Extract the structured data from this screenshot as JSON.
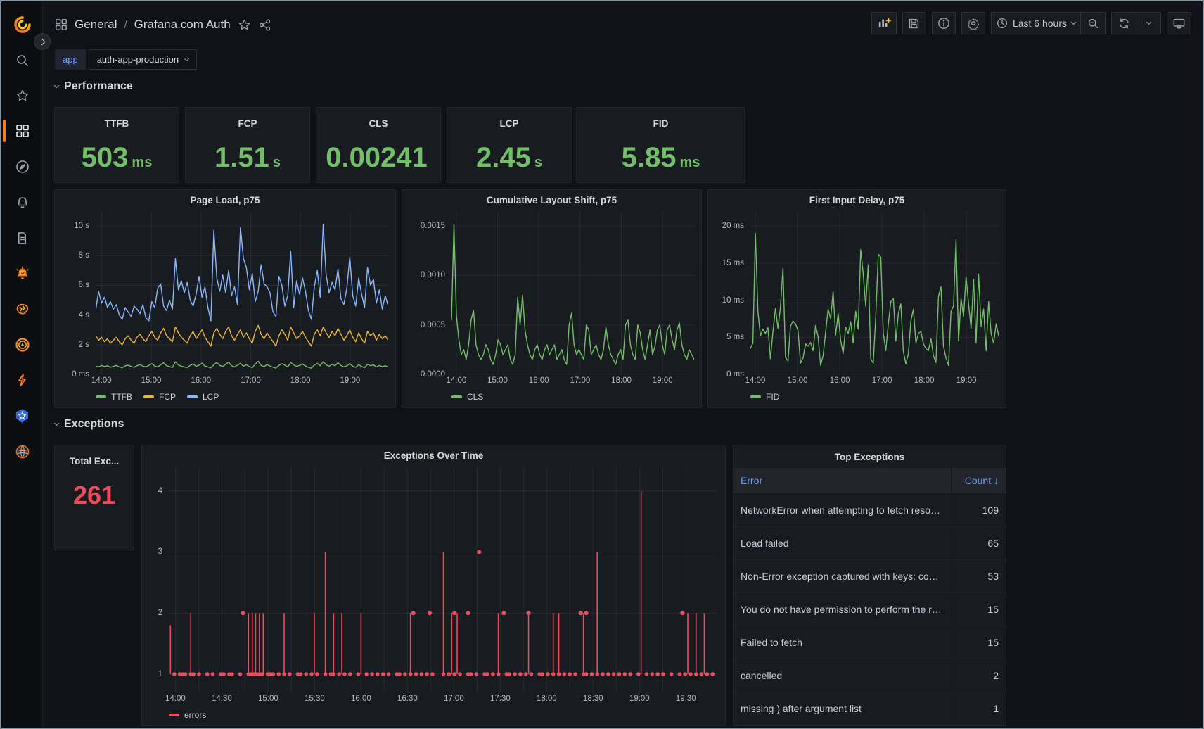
{
  "colors": {
    "green": "#73BF69",
    "yellow": "#EAB839",
    "blue": "#8AB8FF",
    "red": "#F2495C",
    "link": "#6E9FFF",
    "accent": "#FF780A"
  },
  "header": {
    "breadcrumb": {
      "section": "General",
      "separator": "/",
      "title": "Grafana.com Auth"
    },
    "toolbar": {
      "time_range": "Last 6 hours"
    }
  },
  "variables": {
    "label": "app",
    "value": "auth-app-production"
  },
  "sections": {
    "performance": "Performance",
    "exceptions": "Exceptions"
  },
  "stats": [
    {
      "title": "TTFB",
      "value": "503",
      "unit": "ms"
    },
    {
      "title": "FCP",
      "value": "1.51",
      "unit": "s"
    },
    {
      "title": "CLS",
      "value": "0.00241",
      "unit": ""
    },
    {
      "title": "LCP",
      "value": "2.45",
      "unit": "s"
    },
    {
      "title": "FID",
      "value": "5.85",
      "unit": "ms"
    }
  ],
  "total_exceptions": {
    "title": "Total Exc...",
    "value": "261"
  },
  "table": {
    "title": "Top Exceptions",
    "col_error": "Error",
    "col_count": "Count",
    "sort_icon": "↓",
    "rows": [
      {
        "error": "NetworkError when attempting to fetch resource.",
        "count": "109"
      },
      {
        "error": "Load failed",
        "count": "65"
      },
      {
        "error": "Non-Error exception captured with keys: code,mess...",
        "count": "53"
      },
      {
        "error": "You do not have permission to perform the request...",
        "count": "15"
      },
      {
        "error": "Failed to fetch",
        "count": "15"
      },
      {
        "error": "cancelled",
        "count": "2"
      },
      {
        "error": "missing ) after argument list",
        "count": "1"
      }
    ]
  },
  "chart_data": [
    {
      "id": "page_load",
      "type": "line",
      "title": "Page Load, p75",
      "ylim": [
        0,
        11
      ],
      "yaxis_width": 50,
      "yticks": [
        {
          "v": 0,
          "label": "0 ms"
        },
        {
          "v": 2,
          "label": "2 s"
        },
        {
          "v": 4,
          "label": "4 s"
        },
        {
          "v": 6,
          "label": "6 s"
        },
        {
          "v": 8,
          "label": "8 s"
        },
        {
          "v": 10,
          "label": "10 s"
        }
      ],
      "xticks": [
        {
          "f": 0.02,
          "label": "14:00"
        },
        {
          "f": 0.19,
          "label": "15:00"
        },
        {
          "f": 0.36,
          "label": "16:00"
        },
        {
          "f": 0.53,
          "label": "17:00"
        },
        {
          "f": 0.7,
          "label": "18:00"
        },
        {
          "f": 0.87,
          "label": "19:00"
        }
      ],
      "series": [
        {
          "name": "TTFB",
          "color": "#73BF69",
          "values": [
            0.55,
            0.5,
            0.6,
            0.52,
            0.58,
            0.48,
            0.54,
            0.6,
            0.5,
            0.45,
            0.57,
            0.62,
            0.53,
            0.48,
            0.58,
            0.66,
            0.55,
            0.5,
            0.6,
            0.72,
            0.56,
            0.5,
            0.64,
            0.78,
            0.58,
            0.52,
            0.47,
            0.85,
            0.63,
            0.55,
            0.5,
            0.46,
            0.6,
            0.7,
            0.54,
            0.62,
            0.75,
            0.56,
            0.5,
            0.44,
            0.65,
            0.8,
            0.6,
            0.53,
            0.68,
            0.82,
            0.58,
            0.5,
            0.62,
            0.74,
            0.55,
            0.65,
            0.52,
            0.46,
            0.68,
            0.88,
            0.6,
            0.52,
            0.66,
            0.56,
            0.48,
            0.42,
            0.6,
            0.72,
            0.62,
            0.5,
            0.8,
            0.64,
            0.54,
            0.6,
            0.7,
            0.56,
            0.48,
            0.42,
            0.62,
            0.74,
            0.58,
            0.85,
            0.64,
            0.55,
            0.68,
            0.58,
            0.78,
            0.6,
            0.5,
            0.58,
            0.72,
            0.55,
            0.47,
            0.65,
            0.53,
            0.45,
            0.68,
            0.58,
            0.64,
            0.5,
            0.6,
            0.52,
            0.58,
            0.5
          ]
        },
        {
          "name": "FCP",
          "color": "#EAB839",
          "values": [
            2.6,
            2.3,
            2.5,
            2.2,
            2.4,
            2.1,
            2.3,
            2.5,
            2.2,
            2.0,
            2.4,
            2.6,
            2.3,
            2.1,
            2.5,
            2.7,
            2.4,
            2.2,
            2.6,
            2.9,
            2.5,
            2.3,
            2.8,
            3.1,
            2.6,
            2.4,
            2.2,
            3.2,
            2.8,
            2.5,
            2.3,
            2.1,
            2.6,
            2.9,
            2.4,
            2.7,
            3.0,
            2.5,
            2.2,
            1.9,
            2.8,
            3.1,
            2.7,
            2.4,
            2.9,
            3.2,
            2.6,
            2.3,
            2.7,
            3.0,
            2.5,
            2.8,
            2.4,
            2.1,
            2.9,
            3.3,
            2.7,
            2.4,
            2.8,
            2.5,
            2.2,
            1.9,
            2.6,
            3.0,
            2.7,
            2.3,
            3.2,
            2.8,
            2.4,
            2.6,
            2.9,
            2.5,
            2.2,
            1.9,
            2.7,
            3.0,
            2.6,
            3.2,
            2.8,
            2.5,
            2.9,
            2.6,
            3.1,
            2.7,
            2.3,
            2.6,
            3.0,
            2.5,
            2.2,
            2.8,
            2.4,
            2.1,
            2.9,
            2.6,
            2.8,
            2.3,
            2.7,
            2.4,
            2.6,
            2.3
          ]
        },
        {
          "name": "LCP",
          "color": "#8AB8FF",
          "values": [
            4.3,
            5.6,
            4.8,
            5.2,
            4.5,
            4.9,
            4.4,
            4.7,
            4.0,
            3.7,
            4.5,
            4.2,
            3.9,
            4.6,
            4.4,
            4.1,
            4.7,
            3.8,
            3.6,
            4.9,
            4.5,
            5.8,
            6.1,
            4.6,
            4.3,
            5.0,
            4.4,
            7.8,
            5.7,
            6.3,
            5.5,
            6.2,
            5.0,
            4.6,
            5.4,
            6.6,
            5.2,
            5.9,
            4.5,
            3.6,
            9.7,
            6.5,
            5.6,
            6.7,
            5.5,
            7.0,
            5.3,
            5.9,
            4.7,
            9.9,
            7.8,
            7.2,
            5.7,
            6.8,
            4.9,
            5.6,
            7.4,
            6.1,
            5.9,
            5.5,
            4.2,
            3.9,
            6.6,
            6.0,
            4.6,
            5.3,
            8.3,
            4.5,
            6.3,
            5.4,
            6.5,
            5.6,
            4.3,
            3.7,
            5.9,
            7.0,
            5.2,
            10.1,
            6.7,
            5.5,
            6.2,
            5.7,
            7.1,
            5.1,
            4.7,
            5.8,
            7.9,
            5.3,
            4.6,
            6.5,
            5.4,
            4.5,
            7.2,
            6.0,
            6.4,
            4.8,
            5.7,
            4.4,
            5.3,
            4.6
          ]
        }
      ],
      "legend": [
        {
          "label": "TTFB",
          "color": "#73BF69"
        },
        {
          "label": "FCP",
          "color": "#EAB839"
        },
        {
          "label": "LCP",
          "color": "#8AB8FF"
        }
      ]
    },
    {
      "id": "cls",
      "type": "line",
      "title": "Cumulative Layout Shift, p75",
      "ylim": [
        0,
        0.00165
      ],
      "yaxis_width": 62,
      "yticks": [
        {
          "v": 0,
          "label": "0.0000"
        },
        {
          "v": 0.0005,
          "label": "0.0005"
        },
        {
          "v": 0.001,
          "label": "0.0010"
        },
        {
          "v": 0.0015,
          "label": "0.0015"
        }
      ],
      "xticks": [
        {
          "f": 0.02,
          "label": "14:00"
        },
        {
          "f": 0.19,
          "label": "15:00"
        },
        {
          "f": 0.36,
          "label": "16:00"
        },
        {
          "f": 0.53,
          "label": "17:00"
        },
        {
          "f": 0.7,
          "label": "18:00"
        },
        {
          "f": 0.87,
          "label": "19:00"
        }
      ],
      "series": [
        {
          "name": "CLS",
          "color": "#73BF69",
          "values": [
            0.00055,
            0.00152,
            0.0006,
            0.00035,
            0.0002,
            0.00025,
            0.00015,
            0.0003,
            0.00055,
            0.00065,
            0.0003,
            0.0002,
            0.00015,
            0.0002,
            0.0003,
            0.00025,
            0.00015,
            0.0001,
            0.0002,
            0.00035,
            0.0003,
            0.0002,
            0.00025,
            0.0003,
            0.00015,
            0.0001,
            0.0002,
            0.00078,
            0.0005,
            0.0008,
            0.00045,
            0.0003,
            0.0002,
            0.00015,
            0.00025,
            0.0003,
            0.0002,
            0.00015,
            0.00025,
            0.0003,
            0.0002,
            0.00025,
            0.0003,
            0.00015,
            0.0002,
            0.00025,
            0.00015,
            0.0001,
            0.0005,
            0.00062,
            0.0003,
            0.0002,
            0.00025,
            0.0002,
            0.00015,
            0.0005,
            0.00045,
            0.0002,
            0.00025,
            0.0003,
            0.0002,
            0.00015,
            0.00025,
            0.00048,
            0.0003,
            0.0002,
            0.00015,
            0.0001,
            0.0002,
            0.00025,
            0.00015,
            0.0005,
            0.00055,
            0.0003,
            0.0002,
            0.00015,
            0.0005,
            0.00042,
            0.00025,
            0.00015,
            0.0003,
            0.00045,
            0.0002,
            0.00028,
            0.00045,
            0.0005,
            0.0003,
            0.0002,
            0.00045,
            0.0005,
            0.00035,
            0.00025,
            0.00045,
            0.00052,
            0.0003,
            0.0002,
            0.00015,
            0.00025,
            0.0002,
            0.00015
          ]
        }
      ],
      "legend": [
        {
          "label": "CLS",
          "color": "#73BF69"
        }
      ]
    },
    {
      "id": "fid",
      "type": "line",
      "title": "First Input Delay, p75",
      "ylim": [
        0,
        22
      ],
      "yaxis_width": 52,
      "yticks": [
        {
          "v": 0,
          "label": "0 ms"
        },
        {
          "v": 5,
          "label": "5 ms"
        },
        {
          "v": 10,
          "label": "10 ms"
        },
        {
          "v": 15,
          "label": "15 ms"
        },
        {
          "v": 20,
          "label": "20 ms"
        }
      ],
      "xticks": [
        {
          "f": 0.02,
          "label": "14:00"
        },
        {
          "f": 0.19,
          "label": "15:00"
        },
        {
          "f": 0.36,
          "label": "16:00"
        },
        {
          "f": 0.53,
          "label": "17:00"
        },
        {
          "f": 0.7,
          "label": "18:00"
        },
        {
          "f": 0.87,
          "label": "19:00"
        }
      ],
      "series": [
        {
          "name": "FID",
          "color": "#73BF69",
          "values": [
            3.5,
            4.2,
            19,
            8.5,
            5.2,
            6.1,
            5.5,
            6.3,
            2.1,
            5.8,
            8.9,
            6.2,
            9.1,
            14.3,
            2.3,
            1.8,
            6.5,
            7.2,
            6.8,
            5.9,
            1.5,
            2.2,
            4.1,
            3.8,
            4.3,
            3.2,
            6.6,
            5.1,
            1.2,
            2.5,
            5.7,
            8.8,
            7.5,
            11.2,
            5.3,
            8.2,
            4.6,
            2.8,
            6.4,
            5.5,
            7.1,
            4.2,
            8.5,
            6.1,
            16.8,
            13.5,
            9.2,
            14.8,
            2.1,
            1.5,
            7.8,
            16.2,
            15.8,
            5.5,
            3.2,
            6.8,
            9.8,
            10.2,
            4.5,
            8.2,
            9.5,
            3.1,
            1.4,
            2.8,
            7.2,
            8.8,
            4.2,
            5.5,
            5.8,
            4.1,
            3.5,
            3.2,
            4.8,
            2.5,
            1.6,
            10.5,
            11.8,
            3.8,
            2.2,
            1.2,
            8.5,
            9.2,
            18.2,
            4.5,
            10.2,
            7.8,
            13.2,
            9.5,
            6.2,
            12.8,
            4.2,
            13.5,
            6.5,
            8.8,
            3.2,
            9.8,
            5.5,
            4.2,
            6.8,
            5.2
          ]
        }
      ],
      "legend": [
        {
          "label": "FID",
          "color": "#73BF69"
        }
      ]
    },
    {
      "id": "errors",
      "type": "events",
      "title": "Exceptions Over Time",
      "ylim": [
        0.7,
        4.4
      ],
      "yaxis_width": 30,
      "color": "#F2495C",
      "yticks": [
        {
          "v": 1,
          "label": "1"
        },
        {
          "v": 2,
          "label": "2"
        },
        {
          "v": 3,
          "label": "3"
        },
        {
          "v": 4,
          "label": "4"
        }
      ],
      "xticks": [
        {
          "f": 0.012,
          "label": "14:00"
        },
        {
          "f": 0.0965,
          "label": "14:30"
        },
        {
          "f": 0.181,
          "label": "15:00"
        },
        {
          "f": 0.2655,
          "label": "15:30"
        },
        {
          "f": 0.35,
          "label": "16:00"
        },
        {
          "f": 0.4345,
          "label": "16:30"
        },
        {
          "f": 0.519,
          "label": "17:00"
        },
        {
          "f": 0.6035,
          "label": "17:30"
        },
        {
          "f": 0.688,
          "label": "18:00"
        },
        {
          "f": 0.7725,
          "label": "18:30"
        },
        {
          "f": 0.857,
          "label": "19:00"
        },
        {
          "f": 0.9415,
          "label": "19:30"
        }
      ],
      "baseline": 1,
      "points": [
        0.01,
        0.02,
        0.025,
        0.03,
        0.04,
        0.045,
        0.055,
        0.07,
        0.08,
        0.095,
        0.1,
        0.11,
        0.115,
        0.13,
        0.145,
        0.15,
        0.155,
        0.16,
        0.165,
        0.17,
        0.18,
        0.185,
        0.19,
        0.2,
        0.21,
        0.22,
        0.235,
        0.24,
        0.25,
        0.26,
        0.27,
        0.285,
        0.295,
        0.3,
        0.31,
        0.32,
        0.33,
        0.345,
        0.36,
        0.37,
        0.38,
        0.39,
        0.4,
        0.415,
        0.42,
        0.43,
        0.44,
        0.45,
        0.46,
        0.47,
        0.48,
        0.5,
        0.51,
        0.52,
        0.53,
        0.545,
        0.55,
        0.56,
        0.575,
        0.58,
        0.59,
        0.6,
        0.615,
        0.62,
        0.63,
        0.64,
        0.65,
        0.66,
        0.675,
        0.68,
        0.69,
        0.7,
        0.71,
        0.72,
        0.73,
        0.74,
        0.755,
        0.76,
        0.77,
        0.78,
        0.79,
        0.8,
        0.81,
        0.82,
        0.83,
        0.84,
        0.855,
        0.87,
        0.88,
        0.89,
        0.9,
        0.915,
        0.93,
        0.94,
        0.95,
        0.96,
        0.97,
        0.98,
        0.99
      ],
      "spikes": [
        [
          0.003,
          1.8
        ],
        [
          0.04,
          2
        ],
        [
          0.145,
          2
        ],
        [
          0.152,
          2
        ],
        [
          0.158,
          2
        ],
        [
          0.165,
          2
        ],
        [
          0.172,
          2
        ],
        [
          0.21,
          2
        ],
        [
          0.265,
          2
        ],
        [
          0.285,
          3
        ],
        [
          0.3,
          2
        ],
        [
          0.315,
          2
        ],
        [
          0.35,
          2
        ],
        [
          0.44,
          2
        ],
        [
          0.5,
          3
        ],
        [
          0.515,
          2
        ],
        [
          0.525,
          2
        ],
        [
          0.6,
          2
        ],
        [
          0.655,
          2
        ],
        [
          0.7,
          2
        ],
        [
          0.71,
          2
        ],
        [
          0.755,
          2
        ],
        [
          0.78,
          3
        ],
        [
          0.86,
          4
        ],
        [
          0.945,
          2
        ],
        [
          0.96,
          2
        ],
        [
          0.975,
          2
        ]
      ],
      "markers": [
        [
          0.135,
          2
        ],
        [
          0.445,
          2
        ],
        [
          0.475,
          2
        ],
        [
          0.52,
          2
        ],
        [
          0.545,
          2
        ],
        [
          0.565,
          3
        ],
        [
          0.61,
          2
        ],
        [
          0.655,
          2
        ],
        [
          0.75,
          2
        ],
        [
          0.76,
          2
        ],
        [
          0.935,
          2
        ]
      ],
      "legend": [
        {
          "label": "errors",
          "color": "#F2495C"
        }
      ]
    }
  ]
}
